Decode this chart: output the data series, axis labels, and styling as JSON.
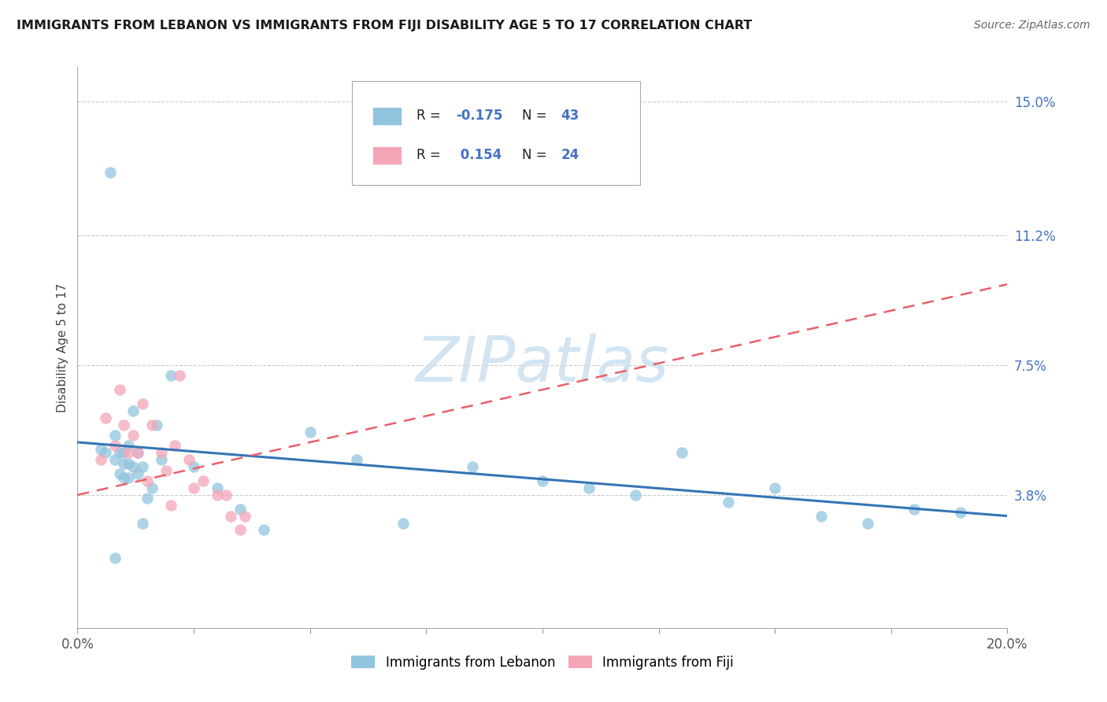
{
  "title": "IMMIGRANTS FROM LEBANON VS IMMIGRANTS FROM FIJI DISABILITY AGE 5 TO 17 CORRELATION CHART",
  "source": "Source: ZipAtlas.com",
  "ylabel": "Disability Age 5 to 17",
  "xlim": [
    0.0,
    0.2
  ],
  "ylim": [
    0.0,
    0.16
  ],
  "ytick_labels_right": [
    "15.0%",
    "11.2%",
    "7.5%",
    "3.8%"
  ],
  "ytick_vals_right": [
    0.15,
    0.112,
    0.075,
    0.038
  ],
  "legend_bottom1": "Immigrants from Lebanon",
  "legend_bottom2": "Immigrants from Fiji",
  "blue_color": "#92c5de",
  "pink_color": "#f4a6b8",
  "blue_line_color": "#3575b5",
  "pink_line_color": "#e8606a",
  "watermark": "ZIPatlas",
  "blue_r": "-0.175",
  "blue_n": "43",
  "pink_r": "0.154",
  "pink_n": "24",
  "blue_scatter_x": [
    0.005,
    0.006,
    0.007,
    0.008,
    0.008,
    0.009,
    0.009,
    0.01,
    0.01,
    0.01,
    0.011,
    0.011,
    0.011,
    0.012,
    0.012,
    0.013,
    0.013,
    0.014,
    0.014,
    0.015,
    0.016,
    0.017,
    0.018,
    0.02,
    0.025,
    0.03,
    0.035,
    0.04,
    0.05,
    0.06,
    0.07,
    0.085,
    0.1,
    0.11,
    0.12,
    0.13,
    0.14,
    0.15,
    0.16,
    0.17,
    0.18,
    0.19,
    0.008
  ],
  "blue_scatter_y": [
    0.051,
    0.05,
    0.13,
    0.055,
    0.048,
    0.05,
    0.044,
    0.05,
    0.047,
    0.043,
    0.052,
    0.047,
    0.043,
    0.062,
    0.046,
    0.05,
    0.044,
    0.03,
    0.046,
    0.037,
    0.04,
    0.058,
    0.048,
    0.072,
    0.046,
    0.04,
    0.034,
    0.028,
    0.056,
    0.048,
    0.03,
    0.046,
    0.042,
    0.04,
    0.038,
    0.05,
    0.036,
    0.04,
    0.032,
    0.03,
    0.034,
    0.033,
    0.02
  ],
  "pink_scatter_x": [
    0.005,
    0.006,
    0.008,
    0.009,
    0.01,
    0.011,
    0.012,
    0.013,
    0.014,
    0.015,
    0.016,
    0.018,
    0.019,
    0.02,
    0.021,
    0.022,
    0.024,
    0.025,
    0.027,
    0.03,
    0.032,
    0.033,
    0.035,
    0.036
  ],
  "pink_scatter_y": [
    0.048,
    0.06,
    0.052,
    0.068,
    0.058,
    0.05,
    0.055,
    0.05,
    0.064,
    0.042,
    0.058,
    0.05,
    0.045,
    0.035,
    0.052,
    0.072,
    0.048,
    0.04,
    0.042,
    0.038,
    0.038,
    0.032,
    0.028,
    0.032
  ],
  "blue_line_x0": 0.0,
  "blue_line_x1": 0.2,
  "blue_line_y0": 0.053,
  "blue_line_y1": 0.032,
  "pink_line_x0": 0.0,
  "pink_line_x1": 0.2,
  "pink_line_y0": 0.038,
  "pink_line_y1": 0.098,
  "xtick_positions": [
    0.0,
    0.025,
    0.05,
    0.075,
    0.1,
    0.125,
    0.15,
    0.175,
    0.2
  ]
}
